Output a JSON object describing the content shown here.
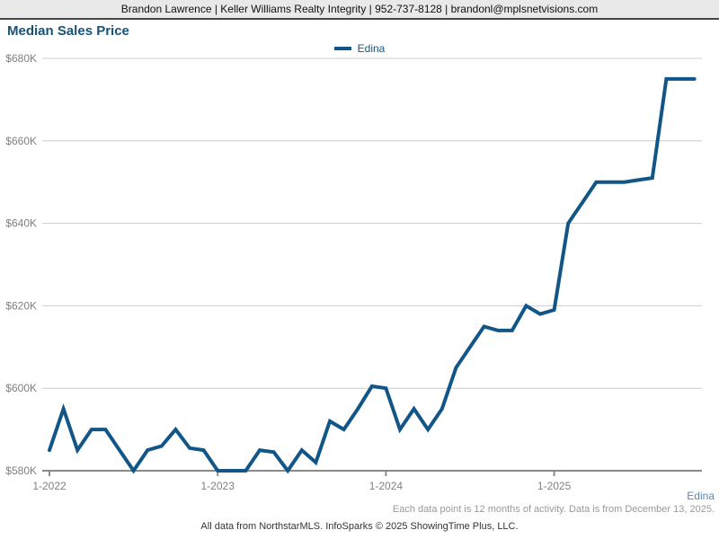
{
  "header": {
    "contact_line": "Brandon Lawrence | Keller Williams Realty Integrity | 952-737-8128 | brandonl@mplsnetvisions.com"
  },
  "title": "Median Sales Price",
  "legend": {
    "label": "Edina"
  },
  "footer": {
    "series_label": "Edina",
    "note_right": "Each data point is 12 months of activity. Data is from December 13, 2025.",
    "note_center": "All data from NorthstarMLS. InfoSparks © 2025 ShowingTime Plus, LLC."
  },
  "colors": {
    "line": "#125687",
    "title_text": "#1a5276",
    "axis_label": "#808080",
    "gridline": "#cccccc",
    "axis_line": "#8a8a8a",
    "header_bg": "#e9e9e9",
    "footer_series_text": "#5b87b5"
  },
  "chart_data": {
    "type": "line",
    "title": "Median Sales Price",
    "grid": "horizontal",
    "legend_position": "top-center",
    "y_unit": "USD (thousands)",
    "ylim_k": [
      580,
      680
    ],
    "y_ticks": [
      {
        "value_k": 580,
        "label": "$580K"
      },
      {
        "value_k": 600,
        "label": "$600K"
      },
      {
        "value_k": 620,
        "label": "$620K"
      },
      {
        "value_k": 640,
        "label": "$640K"
      },
      {
        "value_k": 660,
        "label": "$660K"
      },
      {
        "value_k": 680,
        "label": "$680K"
      }
    ],
    "x": [
      "1-2022",
      "2-2022",
      "3-2022",
      "4-2022",
      "5-2022",
      "6-2022",
      "7-2022",
      "8-2022",
      "9-2022",
      "10-2022",
      "11-2022",
      "12-2022",
      "1-2023",
      "2-2023",
      "3-2023",
      "4-2023",
      "5-2023",
      "6-2023",
      "7-2023",
      "8-2023",
      "9-2023",
      "10-2023",
      "11-2023",
      "12-2023",
      "1-2024",
      "2-2024",
      "3-2024",
      "4-2024",
      "5-2024",
      "6-2024",
      "7-2024",
      "8-2024",
      "9-2024",
      "10-2024",
      "11-2024",
      "12-2024",
      "1-2025",
      "2-2025",
      "3-2025",
      "4-2025",
      "5-2025",
      "6-2025",
      "7-2025",
      "8-2025",
      "9-2025",
      "10-2025",
      "11-2025"
    ],
    "x_tick_indices": [
      0,
      12,
      24,
      36
    ],
    "x_tick_labels": [
      "1-2022",
      "1-2023",
      "1-2024",
      "1-2025"
    ],
    "series": [
      {
        "name": "Edina",
        "color": "#125687",
        "values_k": [
          585,
          595,
          585,
          590,
          590,
          585,
          580,
          585,
          586,
          590,
          585.5,
          585,
          580,
          580,
          580,
          585,
          584.5,
          580,
          585,
          582,
          592,
          590,
          595,
          600.5,
          600,
          590,
          595,
          590,
          595,
          605,
          610,
          615,
          614,
          614,
          620,
          618,
          619,
          640,
          645,
          650,
          650,
          650,
          650.5,
          651,
          675,
          675,
          675
        ]
      }
    ],
    "caption": "Each data point is 12 months of activity. Data is from December 13, 2025."
  }
}
